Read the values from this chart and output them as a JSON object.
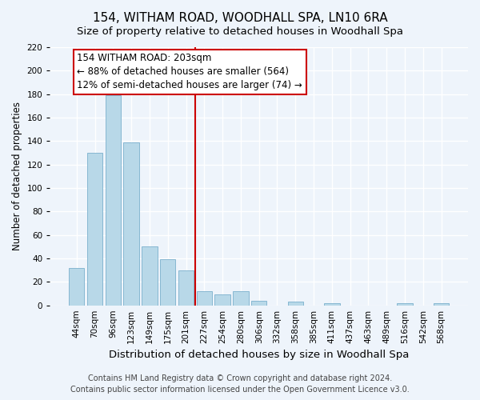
{
  "title": "154, WITHAM ROAD, WOODHALL SPA, LN10 6RA",
  "subtitle": "Size of property relative to detached houses in Woodhall Spa",
  "xlabel": "Distribution of detached houses by size in Woodhall Spa",
  "ylabel": "Number of detached properties",
  "bar_labels": [
    "44sqm",
    "70sqm",
    "96sqm",
    "123sqm",
    "149sqm",
    "175sqm",
    "201sqm",
    "227sqm",
    "254sqm",
    "280sqm",
    "306sqm",
    "332sqm",
    "358sqm",
    "385sqm",
    "411sqm",
    "437sqm",
    "463sqm",
    "489sqm",
    "516sqm",
    "542sqm",
    "568sqm"
  ],
  "bar_values": [
    32,
    130,
    179,
    139,
    50,
    39,
    30,
    12,
    9,
    12,
    4,
    0,
    3,
    0,
    2,
    0,
    0,
    0,
    2,
    0,
    2
  ],
  "bar_color": "#b8d8e8",
  "bar_edge_color": "#7ab0cc",
  "vline_x": 6.5,
  "vline_color": "#cc0000",
  "annotation_text": "154 WITHAM ROAD: 203sqm\n← 88% of detached houses are smaller (564)\n12% of semi-detached houses are larger (74) →",
  "annotation_box_facecolor": "white",
  "annotation_box_edgecolor": "#cc0000",
  "ylim": [
    0,
    220
  ],
  "yticks": [
    0,
    20,
    40,
    60,
    80,
    100,
    120,
    140,
    160,
    180,
    200,
    220
  ],
  "footer_line1": "Contains HM Land Registry data © Crown copyright and database right 2024.",
  "footer_line2": "Contains public sector information licensed under the Open Government Licence v3.0.",
  "bg_color": "#eef4fb",
  "title_fontsize": 11,
  "subtitle_fontsize": 9.5,
  "xlabel_fontsize": 9.5,
  "ylabel_fontsize": 8.5,
  "tick_fontsize": 7.5,
  "footer_fontsize": 7,
  "annotation_fontsize": 8.5
}
